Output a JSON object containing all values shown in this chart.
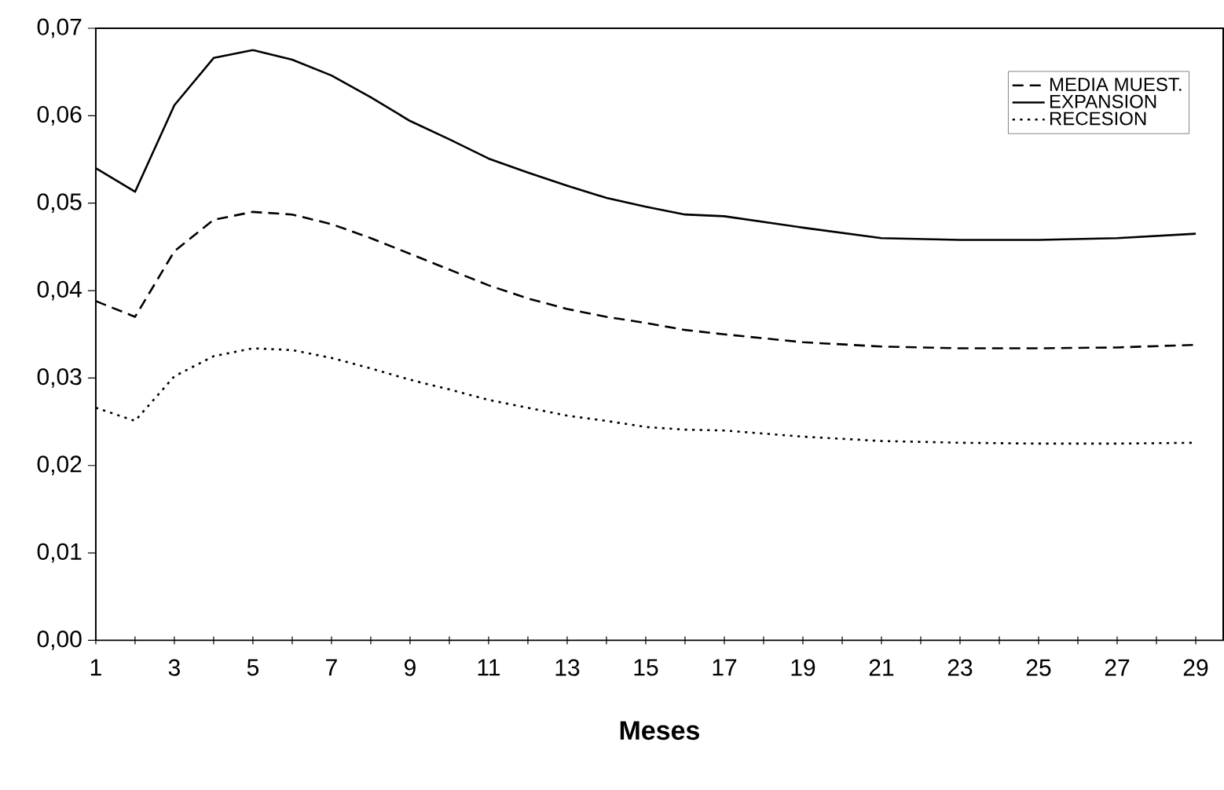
{
  "chart_data": {
    "type": "line",
    "xlabel": "Meses",
    "x": [
      1,
      2,
      3,
      4,
      5,
      6,
      7,
      8,
      9,
      10,
      11,
      12,
      13,
      14,
      15,
      16,
      17,
      19,
      21,
      23,
      25,
      27,
      29
    ],
    "series": [
      {
        "name": "MEDIA MUEST.",
        "color": "#000000",
        "line_style": "dashed",
        "values": [
          0.0388,
          0.037,
          0.0445,
          0.0481,
          0.049,
          0.0487,
          0.0476,
          0.046,
          0.0442,
          0.0424,
          0.0406,
          0.0391,
          0.0379,
          0.037,
          0.0363,
          0.0355,
          0.035,
          0.0341,
          0.0336,
          0.0334,
          0.0334,
          0.0335,
          0.0338
        ]
      },
      {
        "name": "EXPANSION",
        "color": "#000000",
        "line_style": "solid",
        "values": [
          0.054,
          0.0513,
          0.0612,
          0.0666,
          0.0675,
          0.0664,
          0.0646,
          0.0621,
          0.0594,
          0.0573,
          0.0551,
          0.0535,
          0.052,
          0.0506,
          0.0496,
          0.0487,
          0.0485,
          0.0472,
          0.046,
          0.0458,
          0.0458,
          0.046,
          0.0465
        ]
      },
      {
        "name": "RECESION",
        "color": "#000000",
        "line_style": "dotted",
        "values": [
          0.0266,
          0.0251,
          0.0302,
          0.0325,
          0.0334,
          0.0332,
          0.0323,
          0.0311,
          0.0298,
          0.0287,
          0.0275,
          0.0266,
          0.0257,
          0.0251,
          0.0244,
          0.0241,
          0.024,
          0.0233,
          0.0228,
          0.0226,
          0.0225,
          0.0225,
          0.0226
        ]
      }
    ],
    "xlim": [
      1,
      29.7
    ],
    "ylim": [
      0,
      0.07
    ],
    "xticks": [
      1,
      {
        "value": 2,
        "label": null
      },
      3,
      {
        "value": 4,
        "label": null
      },
      5,
      {
        "value": 6,
        "label": null
      },
      7,
      {
        "value": 8,
        "label": null
      },
      9,
      {
        "value": 10,
        "label": null
      },
      11,
      {
        "value": 12,
        "label": null
      },
      13,
      {
        "value": 14,
        "label": null
      },
      15,
      {
        "value": 16,
        "label": null
      },
      17,
      {
        "value": 18,
        "label": null
      },
      19,
      {
        "value": 20,
        "label": null
      },
      21,
      {
        "value": 22,
        "label": null
      },
      23,
      {
        "value": 24,
        "label": null
      },
      25,
      {
        "value": 26,
        "label": null
      },
      27,
      {
        "value": 28,
        "label": null
      },
      29
    ],
    "yticks": [
      {
        "value": 0,
        "label": "0,00"
      },
      {
        "value": 0.01,
        "label": "0,01"
      },
      {
        "value": 0.02,
        "label": "0,02"
      },
      {
        "value": 0.03,
        "label": "0,03"
      },
      {
        "value": 0.04,
        "label": "0,04"
      },
      {
        "value": 0.05,
        "label": "0,05"
      },
      {
        "value": 0.06,
        "label": "0,06"
      },
      {
        "value": 0.07,
        "label": "0,07"
      }
    ],
    "grid": false,
    "legend": "top right"
  }
}
